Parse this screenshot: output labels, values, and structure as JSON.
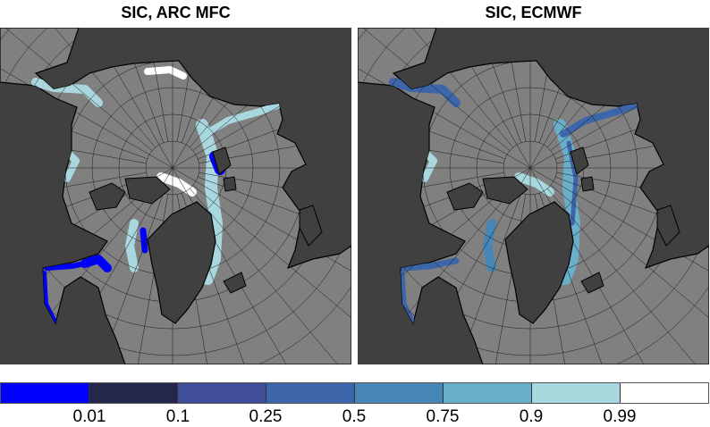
{
  "panels": [
    {
      "title": "SIC, ARC MFC"
    },
    {
      "title": "SIC, ECMWF"
    }
  ],
  "map": {
    "land_color": "#404040",
    "ocean_color": "#808080",
    "graticule_color": "#1a1a1a"
  },
  "colorbar": {
    "colors": [
      "#0000ff",
      "#24264a",
      "#3f4d9a",
      "#3d66aa",
      "#4687b8",
      "#6aafca",
      "#a8d8de",
      "#ffffff"
    ],
    "labels": [
      "0.01",
      "0.1",
      "0.25",
      "0.5",
      "0.75",
      "0.9",
      "0.99"
    ]
  }
}
